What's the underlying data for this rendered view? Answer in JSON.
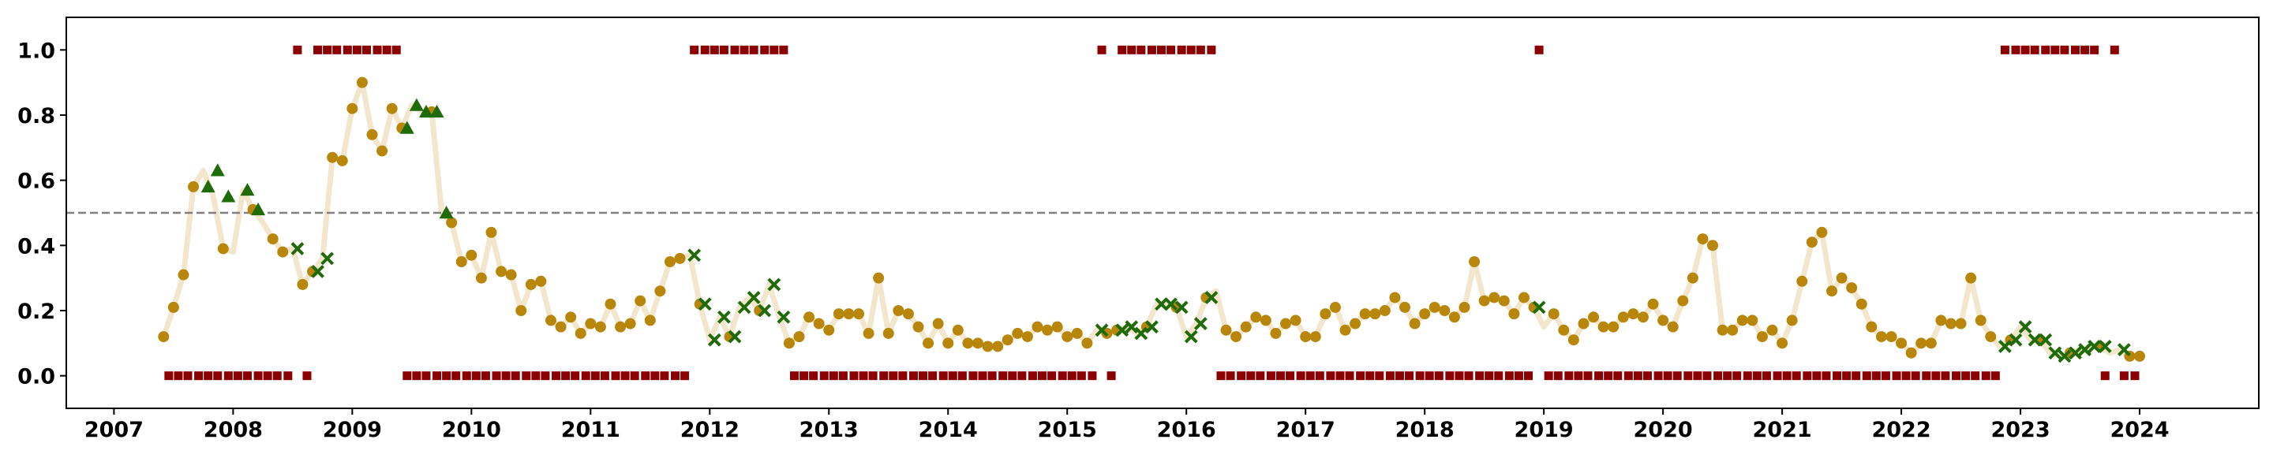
{
  "chart_data": {
    "type": "scatter",
    "title": "",
    "xlabel": "",
    "ylabel": "",
    "xlim": [
      2006.6,
      2025.0
    ],
    "ylim": [
      -0.1,
      1.1
    ],
    "xticks": [
      2007,
      2008,
      2009,
      2010,
      2011,
      2012,
      2013,
      2014,
      2015,
      2016,
      2017,
      2018,
      2019,
      2020,
      2021,
      2022,
      2023,
      2024
    ],
    "xtick_labels": [
      "2007",
      "2008",
      "2009",
      "2010",
      "2011",
      "2012",
      "2013",
      "2014",
      "2015",
      "2016",
      "2017",
      "2018",
      "2019",
      "2020",
      "2021",
      "2022",
      "2023",
      "2024"
    ],
    "yticks": [
      0.0,
      0.2,
      0.4,
      0.6,
      0.8,
      1.0
    ],
    "ytick_labels": [
      "0.0",
      "0.2",
      "0.4",
      "0.6",
      "0.8",
      "1.0"
    ],
    "threshold_line": {
      "y": 0.5,
      "style": "dashed",
      "color": "#808080"
    },
    "grid": false,
    "legend": "none",
    "colors": {
      "line": "#F2E6CC",
      "circle": "#B8860B",
      "triangle": "#1F6B08",
      "cross": "#1F6B08",
      "square": "#8B0000",
      "axes": "#000000"
    },
    "start_year": 2007,
    "start_month": 6,
    "series": [
      {
        "marker": "line",
        "values": [
          0.12,
          0.21,
          0.31,
          0.58,
          0.63,
          0.55,
          0.39,
          0.38,
          0.57,
          0.51,
          0.47,
          0.42,
          0.38,
          0.39,
          0.28,
          0.32,
          0.36,
          0.67,
          0.66,
          0.82,
          0.9,
          0.74,
          0.69,
          0.82,
          0.76,
          0.83,
          0.81,
          0.81,
          0.5,
          0.47,
          0.35,
          0.37,
          0.3,
          0.44,
          0.32,
          0.31,
          0.2,
          0.28,
          0.29,
          0.17,
          0.15,
          0.18,
          0.13,
          0.16,
          0.15,
          0.22,
          0.15,
          0.16,
          0.23,
          0.17,
          0.26,
          0.35,
          0.36,
          0.37,
          0.22,
          0.11,
          0.18,
          0.12,
          0.21,
          0.24,
          0.2,
          0.28,
          0.18,
          0.1,
          0.12,
          0.18,
          0.16,
          0.14,
          0.19,
          0.19,
          0.19,
          0.13,
          0.3,
          0.13,
          0.2,
          0.19,
          0.15,
          0.1,
          0.16,
          0.1,
          0.14,
          0.1,
          0.1,
          0.09,
          0.09,
          0.11,
          0.13,
          0.12,
          0.15,
          0.14,
          0.15,
          0.12,
          0.13,
          0.1,
          0.14,
          0.13,
          0.14,
          0.15,
          0.13,
          0.15,
          0.22,
          0.22,
          0.21,
          0.12,
          0.16,
          0.24,
          0.26,
          0.14,
          0.12,
          0.15,
          0.18,
          0.17,
          0.13,
          0.16,
          0.17,
          0.12,
          0.12,
          0.19,
          0.21,
          0.14,
          0.16,
          0.19,
          0.19,
          0.2,
          0.24,
          0.21,
          0.16,
          0.19,
          0.21,
          0.2,
          0.18,
          0.21,
          0.35,
          0.23,
          0.24,
          0.23,
          0.19,
          0.24,
          0.21,
          0.15,
          0.19,
          0.14,
          0.11,
          0.16,
          0.18,
          0.15,
          0.15,
          0.18,
          0.19,
          0.18,
          0.22,
          0.17,
          0.15,
          0.23,
          0.3,
          0.42,
          0.4,
          0.14,
          0.14,
          0.17,
          0.17,
          0.12,
          0.14,
          0.1,
          0.17,
          0.29,
          0.41,
          0.44,
          0.26,
          0.3,
          0.27,
          0.22,
          0.15,
          0.12,
          0.12,
          0.1,
          0.07,
          0.1,
          0.1,
          0.17,
          0.16,
          0.16,
          0.3,
          0.17,
          0.12,
          0.09,
          0.11,
          0.15,
          0.11,
          0.11,
          0.07,
          0.06,
          0.07,
          0.08,
          0.09,
          0.09,
          0.07,
          0.08,
          0.06,
          0.06
        ]
      },
      {
        "marker": "triangle",
        "points": [
          [
            2007.79,
            0.58
          ],
          [
            2007.87,
            0.63
          ],
          [
            2007.96,
            0.55
          ],
          [
            2008.12,
            0.57
          ],
          [
            2008.21,
            0.51
          ],
          [
            2009.46,
            0.76
          ],
          [
            2009.54,
            0.83
          ],
          [
            2009.62,
            0.81
          ],
          [
            2009.71,
            0.81
          ],
          [
            2009.79,
            0.5
          ]
        ]
      },
      {
        "marker": "cross",
        "points": [
          [
            2008.54,
            0.39
          ],
          [
            2008.71,
            0.32
          ],
          [
            2008.79,
            0.36
          ],
          [
            2011.87,
            0.37
          ],
          [
            2011.96,
            0.22
          ],
          [
            2012.04,
            0.11
          ],
          [
            2012.12,
            0.18
          ],
          [
            2012.21,
            0.12
          ],
          [
            2012.29,
            0.21
          ],
          [
            2012.37,
            0.24
          ],
          [
            2012.46,
            0.2
          ],
          [
            2012.54,
            0.28
          ],
          [
            2012.62,
            0.18
          ],
          [
            2015.29,
            0.14
          ],
          [
            2015.46,
            0.14
          ],
          [
            2015.54,
            0.15
          ],
          [
            2015.62,
            0.13
          ],
          [
            2015.71,
            0.15
          ],
          [
            2015.79,
            0.22
          ],
          [
            2015.87,
            0.22
          ],
          [
            2015.96,
            0.21
          ],
          [
            2016.04,
            0.12
          ],
          [
            2016.12,
            0.16
          ],
          [
            2016.21,
            0.24
          ],
          [
            2018.96,
            0.21
          ],
          [
            2022.87,
            0.09
          ],
          [
            2022.96,
            0.11
          ],
          [
            2023.04,
            0.15
          ],
          [
            2023.12,
            0.11
          ],
          [
            2023.21,
            0.11
          ],
          [
            2023.29,
            0.07
          ],
          [
            2023.37,
            0.06
          ],
          [
            2023.46,
            0.07
          ],
          [
            2023.54,
            0.08
          ],
          [
            2023.62,
            0.09
          ],
          [
            2023.71,
            0.09
          ],
          [
            2023.87,
            0.08
          ]
        ]
      },
      {
        "marker": "square",
        "points": [
          [
            2007.46,
            0
          ],
          [
            2007.54,
            0
          ],
          [
            2007.62,
            0
          ],
          [
            2007.71,
            0
          ],
          [
            2007.79,
            0
          ],
          [
            2007.87,
            0
          ],
          [
            2007.96,
            0
          ],
          [
            2008.04,
            0
          ],
          [
            2008.12,
            0
          ],
          [
            2008.21,
            0
          ],
          [
            2008.29,
            0
          ],
          [
            2008.37,
            0
          ],
          [
            2008.46,
            0
          ],
          [
            2008.54,
            1
          ],
          [
            2008.62,
            0
          ],
          [
            2008.71,
            1
          ],
          [
            2008.79,
            1
          ],
          [
            2008.87,
            1
          ],
          [
            2008.96,
            1
          ],
          [
            2009.04,
            1
          ],
          [
            2009.12,
            1
          ],
          [
            2009.21,
            1
          ],
          [
            2009.29,
            1
          ],
          [
            2009.37,
            1
          ],
          [
            2009.46,
            0
          ],
          [
            2009.54,
            0
          ],
          [
            2009.62,
            0
          ],
          [
            2009.71,
            0
          ],
          [
            2009.79,
            0
          ],
          [
            2009.87,
            0
          ],
          [
            2009.96,
            0
          ],
          [
            2010.04,
            0
          ],
          [
            2010.12,
            0
          ],
          [
            2010.21,
            0
          ],
          [
            2010.29,
            0
          ],
          [
            2010.37,
            0
          ],
          [
            2010.46,
            0
          ],
          [
            2010.54,
            0
          ],
          [
            2010.62,
            0
          ],
          [
            2010.71,
            0
          ],
          [
            2010.79,
            0
          ],
          [
            2010.87,
            0
          ],
          [
            2010.96,
            0
          ],
          [
            2011.04,
            0
          ],
          [
            2011.12,
            0
          ],
          [
            2011.21,
            0
          ],
          [
            2011.29,
            0
          ],
          [
            2011.37,
            0
          ],
          [
            2011.46,
            0
          ],
          [
            2011.54,
            0
          ],
          [
            2011.62,
            0
          ],
          [
            2011.71,
            0
          ],
          [
            2011.79,
            0
          ],
          [
            2011.87,
            1
          ],
          [
            2011.96,
            1
          ],
          [
            2012.04,
            1
          ],
          [
            2012.12,
            1
          ],
          [
            2012.21,
            1
          ],
          [
            2012.29,
            1
          ],
          [
            2012.37,
            1
          ],
          [
            2012.46,
            1
          ],
          [
            2012.54,
            1
          ],
          [
            2012.62,
            1
          ],
          [
            2012.71,
            0
          ],
          [
            2012.79,
            0
          ],
          [
            2012.87,
            0
          ],
          [
            2012.96,
            0
          ],
          [
            2013.04,
            0
          ],
          [
            2013.12,
            0
          ],
          [
            2013.21,
            0
          ],
          [
            2013.29,
            0
          ],
          [
            2013.37,
            0
          ],
          [
            2013.46,
            0
          ],
          [
            2013.54,
            0
          ],
          [
            2013.62,
            0
          ],
          [
            2013.71,
            0
          ],
          [
            2013.79,
            0
          ],
          [
            2013.87,
            0
          ],
          [
            2013.96,
            0
          ],
          [
            2014.04,
            0
          ],
          [
            2014.12,
            0
          ],
          [
            2014.21,
            0
          ],
          [
            2014.29,
            0
          ],
          [
            2014.37,
            0
          ],
          [
            2014.46,
            0
          ],
          [
            2014.54,
            0
          ],
          [
            2014.62,
            0
          ],
          [
            2014.71,
            0
          ],
          [
            2014.79,
            0
          ],
          [
            2014.87,
            0
          ],
          [
            2014.96,
            0
          ],
          [
            2015.04,
            0
          ],
          [
            2015.12,
            0
          ],
          [
            2015.21,
            0
          ],
          [
            2015.29,
            1
          ],
          [
            2015.37,
            0
          ],
          [
            2015.46,
            1
          ],
          [
            2015.54,
            1
          ],
          [
            2015.62,
            1
          ],
          [
            2015.71,
            1
          ],
          [
            2015.79,
            1
          ],
          [
            2015.87,
            1
          ],
          [
            2015.96,
            1
          ],
          [
            2016.04,
            1
          ],
          [
            2016.12,
            1
          ],
          [
            2016.21,
            1
          ],
          [
            2016.29,
            0
          ],
          [
            2016.37,
            0
          ],
          [
            2016.46,
            0
          ],
          [
            2016.54,
            0
          ],
          [
            2016.62,
            0
          ],
          [
            2016.71,
            0
          ],
          [
            2016.79,
            0
          ],
          [
            2016.87,
            0
          ],
          [
            2016.96,
            0
          ],
          [
            2017.04,
            0
          ],
          [
            2017.12,
            0
          ],
          [
            2017.21,
            0
          ],
          [
            2017.29,
            0
          ],
          [
            2017.37,
            0
          ],
          [
            2017.46,
            0
          ],
          [
            2017.54,
            0
          ],
          [
            2017.62,
            0
          ],
          [
            2017.71,
            0
          ],
          [
            2017.79,
            0
          ],
          [
            2017.87,
            0
          ],
          [
            2017.96,
            0
          ],
          [
            2018.04,
            0
          ],
          [
            2018.12,
            0
          ],
          [
            2018.21,
            0
          ],
          [
            2018.29,
            0
          ],
          [
            2018.37,
            0
          ],
          [
            2018.46,
            0
          ],
          [
            2018.54,
            0
          ],
          [
            2018.62,
            0
          ],
          [
            2018.71,
            0
          ],
          [
            2018.79,
            0
          ],
          [
            2018.87,
            0
          ],
          [
            2018.96,
            1
          ],
          [
            2019.04,
            0
          ],
          [
            2019.12,
            0
          ],
          [
            2019.21,
            0
          ],
          [
            2019.29,
            0
          ],
          [
            2019.37,
            0
          ],
          [
            2019.46,
            0
          ],
          [
            2019.54,
            0
          ],
          [
            2019.62,
            0
          ],
          [
            2019.71,
            0
          ],
          [
            2019.79,
            0
          ],
          [
            2019.87,
            0
          ],
          [
            2019.96,
            0
          ],
          [
            2020.04,
            0
          ],
          [
            2020.12,
            0
          ],
          [
            2020.21,
            0
          ],
          [
            2020.29,
            0
          ],
          [
            2020.37,
            0
          ],
          [
            2020.46,
            0
          ],
          [
            2020.54,
            0
          ],
          [
            2020.62,
            0
          ],
          [
            2020.71,
            0
          ],
          [
            2020.79,
            0
          ],
          [
            2020.87,
            0
          ],
          [
            2020.96,
            0
          ],
          [
            2021.04,
            0
          ],
          [
            2021.12,
            0
          ],
          [
            2021.21,
            0
          ],
          [
            2021.29,
            0
          ],
          [
            2021.37,
            0
          ],
          [
            2021.46,
            0
          ],
          [
            2021.54,
            0
          ],
          [
            2021.62,
            0
          ],
          [
            2021.71,
            0
          ],
          [
            2021.79,
            0
          ],
          [
            2021.87,
            0
          ],
          [
            2021.96,
            0
          ],
          [
            2022.04,
            0
          ],
          [
            2022.12,
            0
          ],
          [
            2022.21,
            0
          ],
          [
            2022.29,
            0
          ],
          [
            2022.37,
            0
          ],
          [
            2022.46,
            0
          ],
          [
            2022.54,
            0
          ],
          [
            2022.62,
            0
          ],
          [
            2022.71,
            0
          ],
          [
            2022.79,
            0
          ],
          [
            2022.87,
            1
          ],
          [
            2022.96,
            1
          ],
          [
            2023.04,
            1
          ],
          [
            2023.12,
            1
          ],
          [
            2023.21,
            1
          ],
          [
            2023.29,
            1
          ],
          [
            2023.37,
            1
          ],
          [
            2023.46,
            1
          ],
          [
            2023.54,
            1
          ],
          [
            2023.62,
            1
          ],
          [
            2023.71,
            0
          ],
          [
            2023.79,
            1
          ],
          [
            2023.87,
            0
          ],
          [
            2023.96,
            0
          ]
        ]
      }
    ]
  }
}
